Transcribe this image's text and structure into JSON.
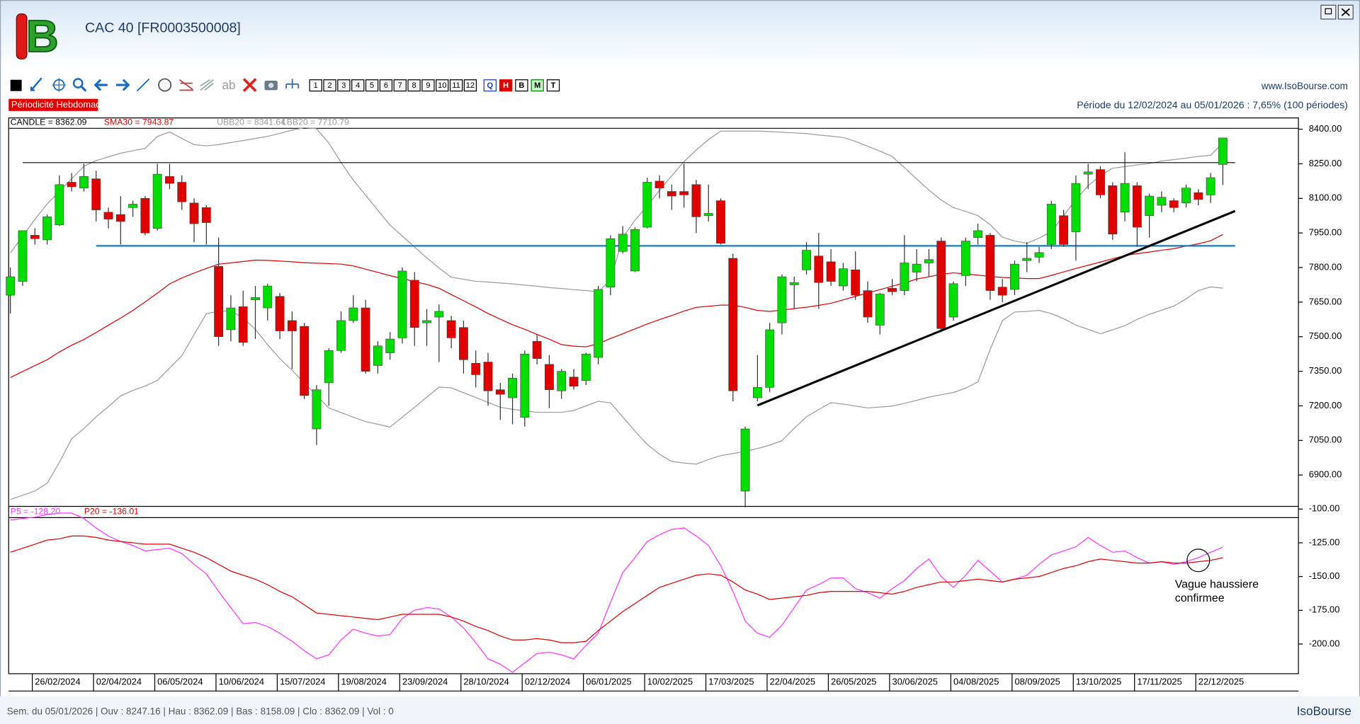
{
  "header": {
    "title": "CAC 40 [FR0003500008]",
    "logo": "B",
    "periodicity": "Périodicité Hebdomadaire",
    "site": "www.IsoBourse.com",
    "period": "Période du 12/02/2024 au 05/01/2026 : 7,65% (100 périodes)"
  },
  "toolbar": {
    "text_tool": "ab",
    "periods": [
      "1",
      "2",
      "3",
      "4",
      "5",
      "6",
      "7",
      "8",
      "9",
      "10",
      "11",
      "12"
    ],
    "modes": [
      "Q",
      "H",
      "B",
      "M",
      "T"
    ]
  },
  "status": {
    "text": "Sem. du 05/01/2026 | Ouv : 8247.16 | Hau : 8362.09 | Bas : 8158.09 | Clo : 8362.09 | Vol : 0",
    "brand": "IsoBourse"
  },
  "chart_data": [
    {
      "type": "candlestick",
      "candle_label": "CANDLE = 8362.09",
      "up_color": "#00dd00",
      "down_color": "#e00000",
      "categories": [
        null,
        null,
        "26/02/2024",
        null,
        null,
        null,
        null,
        "02/04/2024",
        null,
        null,
        null,
        null,
        "06/05/2024",
        null,
        null,
        null,
        null,
        "10/06/2024",
        null,
        null,
        null,
        null,
        "15/07/2024",
        null,
        null,
        null,
        null,
        "19/08/2024",
        null,
        null,
        null,
        null,
        "23/09/2024",
        null,
        null,
        null,
        null,
        "28/10/2024",
        null,
        null,
        null,
        null,
        "02/12/2024",
        null,
        null,
        null,
        null,
        "06/01/2025",
        null,
        null,
        null,
        null,
        "10/02/2025",
        null,
        null,
        null,
        null,
        "17/03/2025",
        null,
        null,
        null,
        null,
        "22/04/2025",
        null,
        null,
        null,
        null,
        "26/05/2025",
        null,
        null,
        null,
        null,
        "30/06/2025",
        null,
        null,
        null,
        null,
        "04/08/2025",
        null,
        null,
        null,
        null,
        "08/09/2025",
        null,
        null,
        null,
        null,
        "13/10/2025",
        null,
        null,
        null,
        null,
        "17/11/2025",
        null,
        null,
        null,
        null,
        "22/12/2025",
        null,
        null
      ],
      "open": [
        7680,
        7740,
        7940,
        7920,
        7985,
        8170,
        8145,
        8185,
        8040,
        8030,
        8060,
        8100,
        7970,
        8195,
        8170,
        8080,
        8060,
        7805,
        7530,
        7630,
        7660,
        7625,
        7675,
        7570,
        7545,
        7100,
        7300,
        7440,
        7570,
        7625,
        7375,
        7430,
        7495,
        7745,
        7560,
        7585,
        7570,
        7540,
        7385,
        7390,
        7270,
        7235,
        7150,
        7480,
        7380,
        7265,
        7325,
        7310,
        7410,
        7715,
        7870,
        7785,
        7975,
        8175,
        8130,
        8130,
        8160,
        8025,
        8090,
        7840,
        6830,
        7235,
        7280,
        7560,
        7725,
        7790,
        7850,
        7825,
        7720,
        7790,
        7700,
        7550,
        7710,
        7700,
        7780,
        7820,
        7915,
        7585,
        7765,
        7930,
        7940,
        7715,
        7705,
        7830,
        7845,
        7900,
        8025,
        7955,
        8205,
        8225,
        8155,
        8040,
        8155,
        8025,
        8070,
        8090,
        8080,
        8125,
        8115,
        8247.16
      ],
      "high": [
        7800,
        7960,
        7970,
        8030,
        8200,
        8210,
        8250,
        8220,
        8060,
        8110,
        8090,
        8110,
        8250,
        8250,
        8200,
        8100,
        8070,
        7930,
        7680,
        7700,
        7720,
        7730,
        7690,
        7610,
        7560,
        7290,
        7450,
        7610,
        7680,
        7660,
        7480,
        7520,
        7800,
        7780,
        7620,
        7640,
        7590,
        7570,
        7440,
        7430,
        7300,
        7340,
        7440,
        7510,
        7420,
        7360,
        7360,
        7430,
        7720,
        7940,
        7980,
        7975,
        8190,
        8200,
        8160,
        8250,
        8180,
        8160,
        8100,
        7860,
        7110,
        7420,
        7560,
        7770,
        7760,
        7910,
        7950,
        7880,
        7820,
        7870,
        7740,
        7690,
        7750,
        7940,
        7880,
        7880,
        7930,
        7740,
        7930,
        7990,
        7950,
        7750,
        7830,
        7910,
        7890,
        8090,
        8050,
        8200,
        8250,
        8240,
        8170,
        8300,
        8170,
        8120,
        8130,
        8100,
        8160,
        8140,
        8210,
        8362.09
      ],
      "low": [
        7600,
        7720,
        7900,
        7900,
        7980,
        8130,
        8130,
        8000,
        7970,
        7900,
        8020,
        7940,
        7960,
        8140,
        8050,
        7910,
        7900,
        7460,
        7480,
        7460,
        7490,
        7570,
        7490,
        7360,
        7230,
        7030,
        7200,
        7430,
        7560,
        7340,
        7340,
        7400,
        7470,
        7460,
        7460,
        7390,
        7450,
        7340,
        7280,
        7200,
        7140,
        7120,
        7110,
        7380,
        7190,
        7230,
        7270,
        7290,
        7380,
        7680,
        7860,
        7780,
        7970,
        8100,
        8050,
        8060,
        7950,
        8000,
        7900,
        7220,
        6760,
        7220,
        7260,
        7510,
        7620,
        7770,
        7620,
        7720,
        7700,
        7660,
        7560,
        7510,
        7680,
        7680,
        7740,
        7760,
        7520,
        7570,
        7720,
        7900,
        7660,
        7650,
        7680,
        7780,
        7820,
        7880,
        7890,
        7830,
        8140,
        8100,
        7920,
        8000,
        7890,
        7930,
        8040,
        8040,
        8060,
        8070,
        8080,
        8158.09
      ],
      "close": [
        7760,
        7960,
        7925,
        8020,
        8160,
        8150,
        8195,
        8050,
        8010,
        8000,
        8075,
        7950,
        8205,
        8165,
        8085,
        7990,
        7995,
        7500,
        7625,
        7475,
        7670,
        7720,
        7525,
        7525,
        7245,
        7270,
        7440,
        7570,
        7625,
        7350,
        7460,
        7490,
        7785,
        7540,
        7570,
        7610,
        7495,
        7400,
        7335,
        7265,
        7250,
        7320,
        7425,
        7405,
        7270,
        7350,
        7285,
        7425,
        7705,
        7925,
        7945,
        7965,
        8170,
        8145,
        8110,
        8115,
        8020,
        8035,
        7905,
        7265,
        7100,
        7280,
        7530,
        7760,
        7735,
        7875,
        7735,
        7740,
        7795,
        7680,
        7585,
        7685,
        7695,
        7820,
        7815,
        7835,
        7535,
        7730,
        7915,
        7960,
        7700,
        7680,
        7815,
        7840,
        7865,
        8075,
        7900,
        8165,
        8215,
        8115,
        7945,
        8165,
        7975,
        8110,
        8105,
        8060,
        8145,
        8095,
        8190,
        8362.09
      ],
      "series": [
        {
          "name": "SMA30 = 7943.87",
          "color": "#e00000",
          "values": [
            7323,
            7349,
            7375,
            7400,
            7434,
            7463,
            7488,
            7518,
            7550,
            7581,
            7614,
            7651,
            7689,
            7729,
            7755,
            7776,
            7796,
            7815,
            7820,
            7826,
            7832,
            7831,
            7828,
            7825,
            7821,
            7819,
            7817,
            7815,
            7807,
            7793,
            7779,
            7765,
            7752,
            7739,
            7727,
            7710,
            7683,
            7656,
            7629,
            7601,
            7576,
            7552,
            7532,
            7510,
            7489,
            7466,
            7459,
            7456,
            7470,
            7492,
            7513,
            7534,
            7555,
            7574,
            7592,
            7611,
            7627,
            7632,
            7637,
            7637,
            7627,
            7614,
            7610,
            7615,
            7622,
            7628,
            7636,
            7645,
            7660,
            7675,
            7690,
            7704,
            7719,
            7733,
            7750,
            7760,
            7771,
            7777,
            7772,
            7767,
            7761,
            7757,
            7755,
            7752,
            7752,
            7766,
            7781,
            7796,
            7810,
            7824,
            7838,
            7852,
            7860,
            7867,
            7875,
            7882,
            7893,
            7903,
            7916,
            7943.87
          ]
        },
        {
          "name": "UBB20 = 8341.64",
          "color": "#9a9a9a",
          "values": [
            7863,
            7936,
            8009,
            8076,
            8130,
            8185,
            8239,
            8264,
            8280,
            8296,
            8307,
            8317,
            8368,
            8388,
            8360,
            8333,
            8328,
            8333,
            8342,
            8351,
            8360,
            8369,
            8382,
            8396,
            8407,
            8402,
            8340,
            8256,
            8179,
            8114,
            8049,
            7984,
            7937,
            7889,
            7842,
            7798,
            7758,
            7749,
            7740,
            7737,
            7733,
            7729,
            7724,
            7719,
            7713,
            7709,
            7704,
            7700,
            7695,
            7746,
            7929,
            8006,
            8067,
            8135,
            8198,
            8260,
            8310,
            8355,
            8392,
            8392,
            8392,
            8392,
            8390,
            8387,
            8384,
            8381,
            8375,
            8370,
            8364,
            8347,
            8326,
            8305,
            8282,
            8233,
            8184,
            8136,
            8093,
            8060,
            8043,
            8025,
            7986,
            7932,
            7915,
            7905,
            7928,
            7955,
            8025,
            8095,
            8155,
            8199,
            8231,
            8238,
            8245,
            8251,
            8262,
            8268,
            8275,
            8282,
            8287,
            8341.64
          ]
        },
        {
          "name": "LBB20 = 7710.79",
          "color": "#9a9a9a",
          "values": [
            6794,
            6812,
            6831,
            6864,
            6955,
            7057,
            7101,
            7152,
            7197,
            7243,
            7267,
            7286,
            7310,
            7364,
            7418,
            7509,
            7600,
            7610,
            7613,
            7581,
            7532,
            7466,
            7405,
            7354,
            7299,
            7245,
            7191,
            7171,
            7151,
            7132,
            7120,
            7108,
            7151,
            7194,
            7238,
            7281,
            7278,
            7257,
            7236,
            7215,
            7194,
            7185,
            7179,
            7172,
            7172,
            7172,
            7180,
            7200,
            7220,
            7213,
            7152,
            7090,
            7033,
            6990,
            6959,
            6952,
            6947,
            6967,
            6984,
            6993,
            7002,
            7015,
            7029,
            7049,
            7103,
            7153,
            7184,
            7214,
            7208,
            7199,
            7191,
            7195,
            7199,
            7211,
            7224,
            7238,
            7248,
            7258,
            7277,
            7304,
            7445,
            7570,
            7607,
            7610,
            7614,
            7600,
            7578,
            7550,
            7532,
            7513,
            7530,
            7548,
            7575,
            7597,
            7615,
            7633,
            7664,
            7700,
            7716,
            7710.79
          ]
        }
      ],
      "hlines": [
        {
          "value": 8255,
          "from": 1,
          "to": 100,
          "color": "#000000"
        },
        {
          "value": 7894,
          "from": 7,
          "to": 100,
          "color": "#1a7ab8"
        }
      ],
      "trendline": {
        "x": [
          61,
          100
        ],
        "y": [
          7202,
          8045
        ],
        "color": "#000000"
      },
      "ylim": [
        6764,
        8449
      ],
      "yticks": [
        {
          "value": 8400,
          "label": "8400.00"
        },
        {
          "value": 8250,
          "label": "8250.00"
        },
        {
          "value": 8100,
          "label": "8100.00"
        },
        {
          "value": 7950,
          "label": "7950.00"
        },
        {
          "value": 7800,
          "label": "7800.00"
        },
        {
          "value": 7650,
          "label": "7650.00"
        },
        {
          "value": 7500,
          "label": "7500.00"
        },
        {
          "value": 7350,
          "label": "7350.00"
        },
        {
          "value": 7200,
          "label": "7200.00"
        },
        {
          "value": 7050,
          "label": "7050.00"
        },
        {
          "value": 6900,
          "label": "6900.00"
        }
      ]
    },
    {
      "type": "line",
      "series": [
        {
          "name": "P5 = -128.20",
          "color": "#ff33ff",
          "values": [
            -108,
            -107,
            -106,
            -104,
            -103,
            -103,
            -107,
            -114,
            -120,
            -124,
            -127,
            -131,
            -130,
            -129,
            -133,
            -141,
            -148,
            -161,
            -173,
            -185,
            -184,
            -187,
            -192,
            -198,
            -205,
            -211,
            -208,
            -197,
            -189,
            -192,
            -194,
            -193,
            -181,
            -175,
            -173,
            -174,
            -180,
            -188,
            -199,
            -211,
            -215,
            -221,
            -214,
            -207,
            -206,
            -208,
            -211,
            -201,
            -192,
            -169,
            -147,
            -136,
            -124,
            -119,
            -115,
            -114,
            -120,
            -127,
            -142,
            -161,
            -183,
            -192,
            -195,
            -186,
            -173,
            -160,
            -156,
            -151,
            -151,
            -159,
            -162,
            -166,
            -159,
            -153,
            -144,
            -137,
            -150,
            -158,
            -149,
            -138,
            -146,
            -154,
            -152,
            -149,
            -141,
            -134,
            -131,
            -128,
            -121,
            -127,
            -132,
            -131,
            -136,
            -140,
            -139,
            -141,
            -139,
            -136,
            -132,
            -128.2
          ]
        },
        {
          "name": "P20 = -136.01",
          "color": "#e00000",
          "values": [
            -132,
            -129,
            -126,
            -123,
            -122,
            -120,
            -120,
            -121,
            -123,
            -124,
            -125,
            -126,
            -126,
            -126,
            -129,
            -132,
            -136,
            -141,
            -146,
            -149,
            -152,
            -156,
            -161,
            -165,
            -171,
            -177,
            -178,
            -179,
            -180,
            -181,
            -182,
            -180,
            -178,
            -178,
            -178,
            -178,
            -180,
            -183,
            -187,
            -190,
            -194,
            -197,
            -197,
            -196,
            -197,
            -199,
            -199,
            -198,
            -190,
            -183,
            -176,
            -170,
            -164,
            -158,
            -155,
            -152,
            -149,
            -148,
            -149,
            -154,
            -160,
            -163,
            -167,
            -166,
            -165,
            -164,
            -162,
            -161,
            -161,
            -161,
            -161,
            -162,
            -163,
            -161,
            -158,
            -156,
            -154,
            -154,
            -153,
            -152,
            -153,
            -154,
            -152,
            -151,
            -150,
            -147,
            -144,
            -142,
            -139,
            -137,
            -138,
            -139,
            -140,
            -140,
            -139,
            -140,
            -140,
            -139,
            -138,
            -136.01
          ]
        }
      ],
      "annotation": {
        "text": [
          "Vague haussiere",
          "confirmee"
        ],
        "x": 97,
        "y": -138
      },
      "ylim": [
        -222,
        -98
      ],
      "yticks": [
        {
          "value": -100,
          "label": "-100.00"
        },
        {
          "value": -125,
          "label": "-125.00"
        },
        {
          "value": -150,
          "label": "-150.00"
        },
        {
          "value": -175,
          "label": "-175.00"
        },
        {
          "value": -200,
          "label": "-200.00"
        }
      ]
    }
  ]
}
